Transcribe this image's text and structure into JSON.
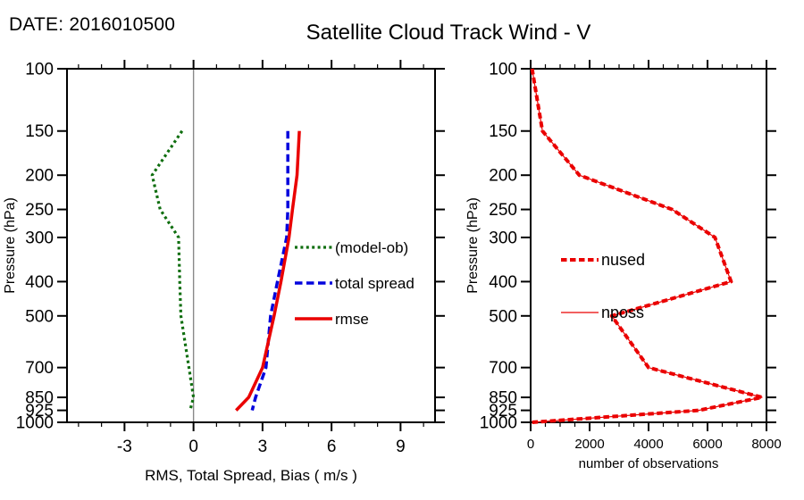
{
  "header": {
    "date_label": "DATE: 2016010500",
    "title": "Satellite Cloud Track Wind - V"
  },
  "chart_data": [
    {
      "type": "line",
      "panel": "left",
      "title": "",
      "xlabel": "RMS, Total Spread, Bias ( m/s )",
      "ylabel": "Pressure (hPa)",
      "xlim": [
        -5.5,
        10.5
      ],
      "x_major_ticks": [
        -3,
        0,
        3,
        6,
        9
      ],
      "x_minor_step": 1,
      "yscale": "log",
      "ylim": [
        100,
        1000
      ],
      "y_axis_inverted": true,
      "y_ticks": [
        100,
        150,
        200,
        250,
        300,
        400,
        500,
        700,
        850,
        925,
        1000
      ],
      "zero_line_x": 0,
      "grid": false,
      "legend_position": "inside-right",
      "frame_color": "#000000",
      "zero_line_color": "#8a8a8a",
      "series": [
        {
          "name": "(model-ob)",
          "color": "#0f6e0f",
          "line_style": "dotted",
          "line_width": 3.2,
          "pressure": [
            150,
            200,
            250,
            300,
            400,
            500,
            700,
            850,
            925
          ],
          "values": [
            -0.5,
            -1.8,
            -1.45,
            -0.65,
            -0.6,
            -0.55,
            -0.2,
            0.0,
            -0.15
          ]
        },
        {
          "name": "total spread",
          "color": "#0404dd",
          "line_style": "dashed",
          "line_width": 3.5,
          "pressure": [
            150,
            200,
            250,
            300,
            400,
            500,
            700,
            850,
            925
          ],
          "values": [
            4.1,
            4.1,
            4.1,
            4.05,
            3.65,
            3.35,
            3.15,
            2.7,
            2.55
          ]
        },
        {
          "name": "rmse",
          "color": "#ea0000",
          "line_style": "solid",
          "line_width": 3.5,
          "pressure": [
            150,
            200,
            250,
            300,
            400,
            500,
            700,
            850,
            925
          ],
          "values": [
            4.6,
            4.5,
            4.3,
            4.15,
            3.8,
            3.5,
            3.0,
            2.4,
            1.85
          ]
        }
      ]
    },
    {
      "type": "line",
      "panel": "right",
      "title": "",
      "xlabel": "number of observations",
      "ylabel": "Pressure (hPa)",
      "xlim": [
        0,
        8000
      ],
      "x_major_ticks": [
        0,
        2000,
        4000,
        6000,
        8000
      ],
      "x_minor_step": 500,
      "yscale": "log",
      "ylim": [
        100,
        1000
      ],
      "y_axis_inverted": true,
      "y_ticks": [
        100,
        150,
        200,
        250,
        300,
        400,
        500,
        700,
        850,
        925,
        1000
      ],
      "grid": false,
      "legend_position": "inside-left",
      "frame_color": "#000000",
      "series": [
        {
          "name": "nposs",
          "color": "#ea0000",
          "line_style": "solid",
          "line_width": 1.2,
          "pressure": [
            100,
            150,
            200,
            250,
            300,
            400,
            500,
            700,
            850,
            925,
            1000
          ],
          "values": [
            50,
            400,
            1650,
            4800,
            6250,
            6800,
            2750,
            4000,
            7850,
            5700,
            50
          ]
        },
        {
          "name": "nused",
          "color": "#ea0000",
          "line_style": "dashed",
          "line_width": 4,
          "pressure": [
            100,
            150,
            200,
            250,
            300,
            400,
            500,
            700,
            850,
            925,
            1000
          ],
          "values": [
            50,
            400,
            1650,
            4800,
            6250,
            6800,
            2750,
            4000,
            7850,
            5700,
            50
          ]
        }
      ]
    }
  ]
}
